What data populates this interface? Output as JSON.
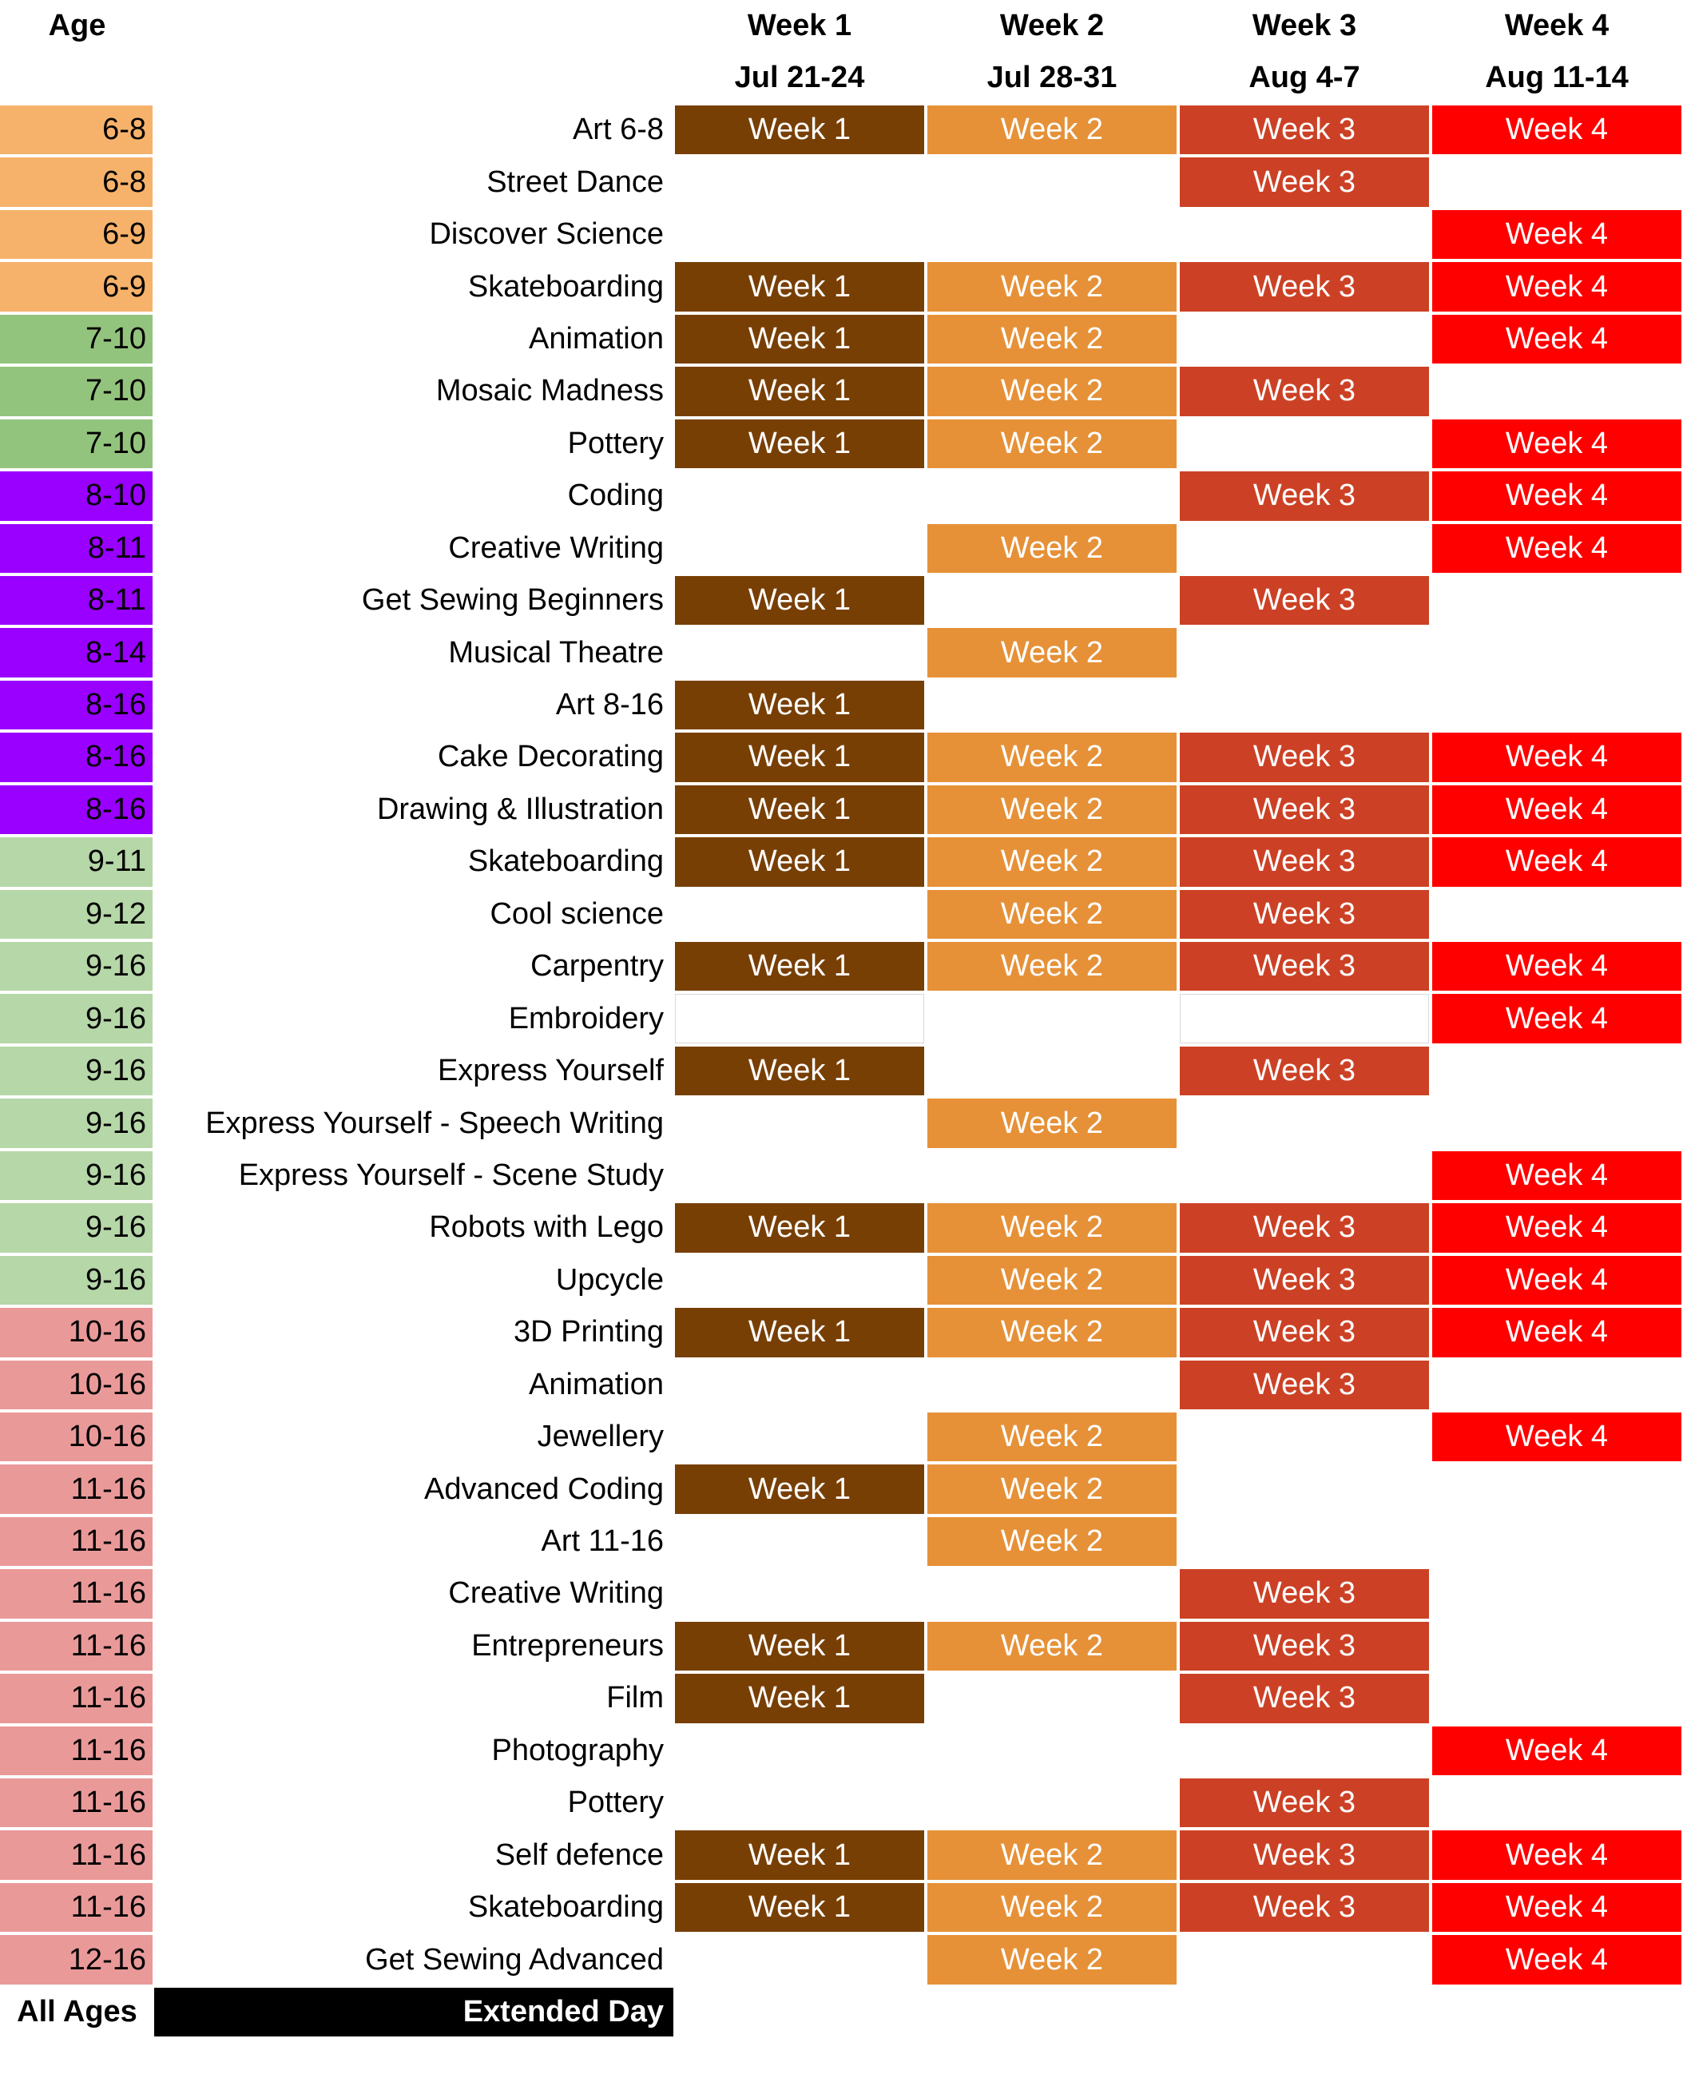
{
  "header": {
    "age_label": "Age",
    "weeks": [
      {
        "label": "Week 1",
        "dates": "Jul 21-24"
      },
      {
        "label": "Week 2",
        "dates": "Jul 28-31"
      },
      {
        "label": "Week 3",
        "dates": "Aug 4-7"
      },
      {
        "label": "Week 4",
        "dates": "Aug 11-14"
      }
    ]
  },
  "colors": {
    "week1": "#783f04",
    "week2": "#e69138",
    "week3": "#cc4125",
    "week4": "#ff0000",
    "age_6_9": "#f6b26b",
    "age_7_10": "#93c47d",
    "age_8_16": "#9900ff",
    "age_9_16": "#b6d7a8",
    "age_10_16": "#ea9999"
  },
  "rows": [
    {
      "age": "6-8",
      "age_color": "#f6b26b",
      "name": "Art 6-8",
      "weeks": [
        "Week 1",
        "Week 2",
        "Week 3",
        "Week 4"
      ]
    },
    {
      "age": "6-8",
      "age_color": "#f6b26b",
      "name": "Street Dance",
      "weeks": [
        "",
        "",
        "Week 3",
        ""
      ]
    },
    {
      "age": "6-9",
      "age_color": "#f6b26b",
      "name": "Discover Science",
      "weeks": [
        "",
        "",
        "",
        "Week 4"
      ]
    },
    {
      "age": "6-9",
      "age_color": "#f6b26b",
      "name": "Skateboarding",
      "weeks": [
        "Week 1",
        "Week 2",
        "Week 3",
        "Week 4"
      ]
    },
    {
      "age": "7-10",
      "age_color": "#93c47d",
      "name": "Animation",
      "weeks": [
        "Week 1",
        "Week 2",
        "",
        "Week 4"
      ]
    },
    {
      "age": "7-10",
      "age_color": "#93c47d",
      "name": "Mosaic Madness",
      "weeks": [
        "Week 1",
        "Week 2",
        "Week 3",
        ""
      ]
    },
    {
      "age": "7-10",
      "age_color": "#93c47d",
      "name": "Pottery",
      "weeks": [
        "Week 1",
        "Week 2",
        "",
        "Week 4"
      ]
    },
    {
      "age": "8-10",
      "age_color": "#9900ff",
      "name": "Coding",
      "weeks": [
        "",
        "",
        "Week 3",
        "Week 4"
      ]
    },
    {
      "age": "8-11",
      "age_color": "#9900ff",
      "name": "Creative Writing",
      "weeks": [
        "",
        "Week 2",
        "",
        "Week 4"
      ]
    },
    {
      "age": "8-11",
      "age_color": "#9900ff",
      "name": "Get Sewing Beginners",
      "weeks": [
        "Week 1",
        "",
        "Week 3",
        ""
      ]
    },
    {
      "age": "8-14",
      "age_color": "#9900ff",
      "name": "Musical Theatre",
      "weeks": [
        "",
        "Week 2",
        "",
        ""
      ]
    },
    {
      "age": "8-16",
      "age_color": "#9900ff",
      "name": "Art 8-16",
      "weeks": [
        "Week 1",
        "",
        "",
        ""
      ]
    },
    {
      "age": "8-16",
      "age_color": "#9900ff",
      "name": "Cake Decorating",
      "weeks": [
        "Week 1",
        "Week 2",
        "Week 3",
        "Week 4"
      ]
    },
    {
      "age": "8-16",
      "age_color": "#9900ff",
      "name": "Drawing & Illustration",
      "weeks": [
        "Week 1",
        "Week 2",
        "Week 3",
        "Week 4"
      ]
    },
    {
      "age": "9-11",
      "age_color": "#b6d7a8",
      "name": "Skateboarding",
      "weeks": [
        "Week 1",
        "Week 2",
        "Week 3",
        "Week 4"
      ]
    },
    {
      "age": "9-12",
      "age_color": "#b6d7a8",
      "name": "Cool science",
      "weeks": [
        "",
        "Week 2",
        "Week 3",
        ""
      ]
    },
    {
      "age": "9-16",
      "age_color": "#b6d7a8",
      "name": "Carpentry",
      "weeks": [
        "Week 1",
        "Week 2",
        "Week 3",
        "Week 4"
      ]
    },
    {
      "age": "9-16",
      "age_color": "#b6d7a8",
      "name": "Embroidery",
      "weeks": [
        "",
        "",
        "",
        "Week 4"
      ]
    },
    {
      "age": "9-16",
      "age_color": "#b6d7a8",
      "name": "Express Yourself",
      "weeks": [
        "Week 1",
        "",
        "Week 3",
        ""
      ]
    },
    {
      "age": "9-16",
      "age_color": "#b6d7a8",
      "name": "Express Yourself - Speech Writing",
      "weeks": [
        "",
        "Week 2",
        "",
        ""
      ]
    },
    {
      "age": "9-16",
      "age_color": "#b6d7a8",
      "name": "Express Yourself - Scene Study",
      "weeks": [
        "",
        "",
        "",
        "Week 4"
      ]
    },
    {
      "age": "9-16",
      "age_color": "#b6d7a8",
      "name": "Robots with Lego",
      "weeks": [
        "Week 1",
        "Week 2",
        "Week 3",
        "Week 4"
      ]
    },
    {
      "age": "9-16",
      "age_color": "#b6d7a8",
      "name": "Upcycle",
      "weeks": [
        "",
        "Week 2",
        "Week 3",
        "Week 4"
      ]
    },
    {
      "age": "10-16",
      "age_color": "#ea9999",
      "name": "3D Printing",
      "weeks": [
        "Week 1",
        "Week 2",
        "Week 3",
        "Week 4"
      ]
    },
    {
      "age": "10-16",
      "age_color": "#ea9999",
      "name": "Animation",
      "weeks": [
        "",
        "",
        "Week 3",
        ""
      ]
    },
    {
      "age": "10-16",
      "age_color": "#ea9999",
      "name": "Jewellery",
      "weeks": [
        "",
        "Week 2",
        "",
        "Week 4"
      ]
    },
    {
      "age": "11-16",
      "age_color": "#ea9999",
      "name": "Advanced Coding",
      "weeks": [
        "Week 1",
        "Week 2",
        "",
        ""
      ]
    },
    {
      "age": "11-16",
      "age_color": "#ea9999",
      "name": "Art 11-16",
      "weeks": [
        "",
        "Week 2",
        "",
        ""
      ]
    },
    {
      "age": "11-16",
      "age_color": "#ea9999",
      "name": "Creative Writing",
      "weeks": [
        "",
        "",
        "Week 3",
        ""
      ]
    },
    {
      "age": "11-16",
      "age_color": "#ea9999",
      "name": "Entrepreneurs",
      "weeks": [
        "Week 1",
        "Week 2",
        "Week 3",
        ""
      ]
    },
    {
      "age": "11-16",
      "age_color": "#ea9999",
      "name": "Film",
      "weeks": [
        "Week 1",
        "",
        "Week 3",
        ""
      ]
    },
    {
      "age": "11-16",
      "age_color": "#ea9999",
      "name": "Photography",
      "weeks": [
        "",
        "",
        "",
        "Week 4"
      ]
    },
    {
      "age": "11-16",
      "age_color": "#ea9999",
      "name": "Pottery",
      "weeks": [
        "",
        "",
        "Week 3",
        ""
      ]
    },
    {
      "age": "11-16",
      "age_color": "#ea9999",
      "name": "Self defence",
      "weeks": [
        "Week 1",
        "Week 2",
        "Week 3",
        "Week 4"
      ]
    },
    {
      "age": "11-16",
      "age_color": "#ea9999",
      "name": "Skateboarding",
      "weeks": [
        "Week 1",
        "Week 2",
        "Week 3",
        "Week 4"
      ]
    },
    {
      "age": "12-16",
      "age_color": "#ea9999",
      "name": "Get Sewing Advanced",
      "weeks": [
        "",
        "Week 2",
        "",
        "Week 4"
      ]
    }
  ],
  "footer": {
    "age": "All Ages",
    "label": "Extended Day"
  }
}
